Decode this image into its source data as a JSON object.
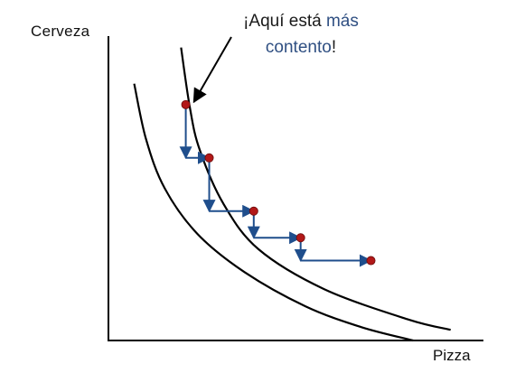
{
  "chart_data": {
    "type": "line",
    "ylabel": "Cerveza",
    "xlabel": "Pizza",
    "annotation": {
      "part1": "¡Aquí está ",
      "part2": "más",
      "part3": "contento",
      "part4": "!"
    },
    "curves": [
      {
        "role": "higher-indifference-curve",
        "points": [
          [
            1.55,
            7.7
          ],
          [
            1.74,
            6.1
          ],
          [
            1.95,
            5.0
          ],
          [
            2.45,
            3.6
          ],
          [
            3.2,
            2.4
          ],
          [
            4.6,
            1.35
          ],
          [
            6.4,
            0.55
          ],
          [
            7.3,
            0.28
          ]
        ]
      },
      {
        "role": "lower-indifference-curve",
        "points": [
          [
            0.55,
            6.75
          ],
          [
            0.8,
            5.3
          ],
          [
            1.2,
            4.0
          ],
          [
            1.9,
            2.8
          ],
          [
            2.9,
            1.8
          ],
          [
            4.2,
            0.9
          ],
          [
            5.4,
            0.35
          ],
          [
            6.5,
            0.0
          ]
        ]
      }
    ],
    "points": [
      [
        1.65,
        6.2
      ],
      [
        2.15,
        4.8
      ],
      [
        3.1,
        3.4
      ],
      [
        4.1,
        2.7
      ],
      [
        5.6,
        2.1
      ]
    ],
    "steps": [
      {
        "from": [
          1.65,
          6.2
        ],
        "to": [
          1.65,
          4.8
        ],
        "dir": "down"
      },
      {
        "from": [
          1.65,
          4.8
        ],
        "to": [
          2.15,
          4.8
        ],
        "dir": "right"
      },
      {
        "from": [
          2.15,
          4.8
        ],
        "to": [
          2.15,
          3.4
        ],
        "dir": "down"
      },
      {
        "from": [
          2.15,
          3.4
        ],
        "to": [
          3.1,
          3.4
        ],
        "dir": "right"
      },
      {
        "from": [
          3.1,
          3.4
        ],
        "to": [
          3.1,
          2.7
        ],
        "dir": "down"
      },
      {
        "from": [
          3.1,
          2.7
        ],
        "to": [
          4.1,
          2.7
        ],
        "dir": "right"
      },
      {
        "from": [
          4.1,
          2.7
        ],
        "to": [
          4.1,
          2.1
        ],
        "dir": "down"
      },
      {
        "from": [
          4.1,
          2.1
        ],
        "to": [
          5.6,
          2.1
        ],
        "dir": "right"
      }
    ],
    "xlim": [
      0,
      8
    ],
    "ylim": [
      0,
      8
    ],
    "colors": {
      "axis": "#000000",
      "curve": "#000000",
      "steps": "#1f4e8c",
      "points": "#b21818",
      "highlight": "#2f4f82"
    }
  }
}
